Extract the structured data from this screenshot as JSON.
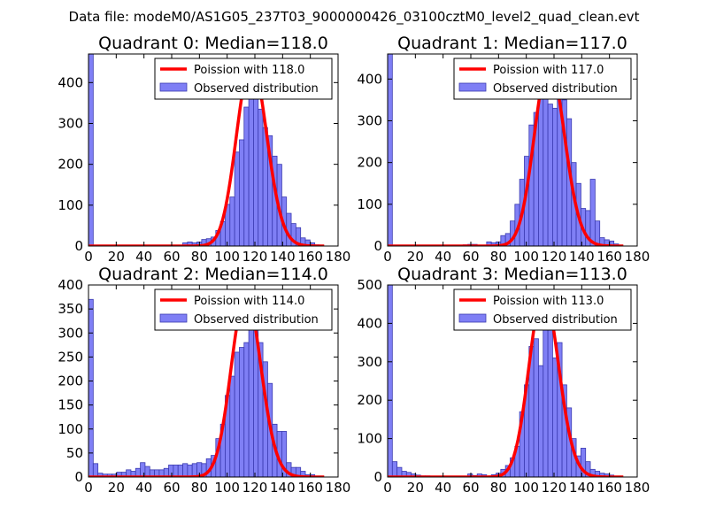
{
  "figure_title": "Data file: modeM0/AS1G05_237T03_9000000426_03100cztM0_level2_quad_clean.evt",
  "colors": {
    "bar_fill": "#7f7ff5",
    "bar_edge": "#3a3ab0",
    "poisson_line": "#ff0000",
    "background": "#ffffff"
  },
  "chart_data": [
    {
      "type": "bar",
      "title": "Quadrant 0: Median=118.0",
      "median": 118.0,
      "xlim": [
        0,
        180
      ],
      "ylim": [
        0,
        470
      ],
      "xticks": [
        "0",
        "20",
        "40",
        "60",
        "80",
        "100",
        "120",
        "140",
        "160",
        "180"
      ],
      "yticks": [
        "0",
        "100",
        "200",
        "300",
        "400"
      ],
      "ytick_values": [
        0,
        100,
        200,
        300,
        400
      ],
      "legend": [
        "Poission with 118.0",
        "Observed distribution"
      ],
      "bin_width": 3.4,
      "bins": [
        [
          0,
          470
        ],
        [
          3.4,
          2
        ],
        [
          6.8,
          1
        ],
        [
          64.6,
          2
        ],
        [
          68,
          8
        ],
        [
          71.4,
          10
        ],
        [
          74.8,
          8
        ],
        [
          78.2,
          10
        ],
        [
          81.6,
          16
        ],
        [
          85,
          18
        ],
        [
          88.4,
          22
        ],
        [
          91.8,
          38
        ],
        [
          95.2,
          60
        ],
        [
          98.6,
          102
        ],
        [
          102,
          120
        ],
        [
          105.4,
          230
        ],
        [
          108.8,
          260
        ],
        [
          112.2,
          340
        ],
        [
          115.6,
          360
        ],
        [
          119,
          400
        ],
        [
          122.4,
          335
        ],
        [
          125.8,
          290
        ],
        [
          129.2,
          270
        ],
        [
          132.6,
          220
        ],
        [
          136,
          200
        ],
        [
          139.4,
          120
        ],
        [
          142.8,
          80
        ],
        [
          146.2,
          55
        ],
        [
          149.6,
          45
        ],
        [
          153,
          20
        ],
        [
          156.4,
          15
        ],
        [
          159.8,
          8
        ],
        [
          163.2,
          3
        ]
      ],
      "poisson": {
        "mean": 118.0,
        "peak": 450
      }
    },
    {
      "type": "bar",
      "title": "Quadrant 1: Median=117.0",
      "median": 117.0,
      "xlim": [
        0,
        180
      ],
      "ylim": [
        0,
        460
      ],
      "xticks": [
        "0",
        "20",
        "40",
        "60",
        "80",
        "100",
        "120",
        "140",
        "160",
        "180"
      ],
      "yticks": [
        "0",
        "100",
        "200",
        "300",
        "400"
      ],
      "ytick_values": [
        0,
        100,
        200,
        300,
        400
      ],
      "legend": [
        "Poission with 117.0",
        "Observed distribution"
      ],
      "bin_width": 3.4,
      "bins": [
        [
          0,
          460
        ],
        [
          3.4,
          2
        ],
        [
          6.8,
          1
        ],
        [
          54.4,
          3
        ],
        [
          57.8,
          4
        ],
        [
          61.2,
          4
        ],
        [
          71.4,
          10
        ],
        [
          74.8,
          8
        ],
        [
          78.2,
          10
        ],
        [
          81.6,
          25
        ],
        [
          85,
          30
        ],
        [
          88.4,
          60
        ],
        [
          91.8,
          100
        ],
        [
          95.2,
          160
        ],
        [
          98.6,
          215
        ],
        [
          102,
          290
        ],
        [
          105.4,
          320
        ],
        [
          108.8,
          355
        ],
        [
          112.2,
          415
        ],
        [
          115.6,
          340
        ],
        [
          119,
          330
        ],
        [
          122.4,
          380
        ],
        [
          125.8,
          350
        ],
        [
          129.2,
          305
        ],
        [
          132.6,
          200
        ],
        [
          136,
          150
        ],
        [
          139.4,
          90
        ],
        [
          142.8,
          85
        ],
        [
          146.2,
          160
        ],
        [
          149.6,
          60
        ],
        [
          153,
          20
        ],
        [
          156.4,
          15
        ],
        [
          159.8,
          12
        ],
        [
          163.2,
          5
        ]
      ],
      "poisson": {
        "mean": 117.0,
        "peak": 440
      }
    },
    {
      "type": "bar",
      "title": "Quadrant 2: Median=114.0",
      "median": 114.0,
      "xlim": [
        0,
        180
      ],
      "ylim": [
        0,
        400
      ],
      "xticks": [
        "0",
        "20",
        "40",
        "60",
        "80",
        "100",
        "120",
        "140",
        "160",
        "180"
      ],
      "yticks": [
        "0",
        "50",
        "100",
        "150",
        "200",
        "250",
        "300",
        "350",
        "400"
      ],
      "ytick_values": [
        0,
        50,
        100,
        150,
        200,
        250,
        300,
        350,
        400
      ],
      "legend": [
        "Poission with 114.0",
        "Observed distribution"
      ],
      "bin_width": 3.4,
      "bins": [
        [
          0,
          370
        ],
        [
          3.4,
          28
        ],
        [
          6.8,
          8
        ],
        [
          10.2,
          6
        ],
        [
          13.6,
          6
        ],
        [
          17,
          6
        ],
        [
          20.4,
          10
        ],
        [
          23.8,
          10
        ],
        [
          27.2,
          15
        ],
        [
          30.6,
          12
        ],
        [
          34,
          18
        ],
        [
          37.4,
          30
        ],
        [
          40.8,
          22
        ],
        [
          44.2,
          15
        ],
        [
          47.6,
          15
        ],
        [
          51,
          15
        ],
        [
          54.4,
          18
        ],
        [
          57.8,
          25
        ],
        [
          61.2,
          25
        ],
        [
          64.6,
          25
        ],
        [
          68,
          28
        ],
        [
          71.4,
          25
        ],
        [
          74.8,
          28
        ],
        [
          78.2,
          30
        ],
        [
          81.6,
          28
        ],
        [
          85,
          38
        ],
        [
          88.4,
          45
        ],
        [
          91.8,
          80
        ],
        [
          95.2,
          110
        ],
        [
          98.6,
          170
        ],
        [
          102,
          210
        ],
        [
          105.4,
          260
        ],
        [
          108.8,
          270
        ],
        [
          112.2,
          280
        ],
        [
          115.6,
          385
        ],
        [
          119,
          335
        ],
        [
          122.4,
          280
        ],
        [
          125.8,
          240
        ],
        [
          129.2,
          195
        ],
        [
          132.6,
          110
        ],
        [
          136,
          95
        ],
        [
          139.4,
          95
        ],
        [
          142.8,
          30
        ],
        [
          146.2,
          20
        ],
        [
          149.6,
          20
        ],
        [
          153,
          12
        ],
        [
          156.4,
          5
        ],
        [
          159.8,
          5
        ],
        [
          163.2,
          2
        ]
      ],
      "poisson": {
        "mean": 114.0,
        "peak": 380
      }
    },
    {
      "type": "bar",
      "title": "Quadrant 3: Median=113.0",
      "median": 113.0,
      "xlim": [
        0,
        180
      ],
      "ylim": [
        0,
        500
      ],
      "xticks": [
        "0",
        "20",
        "40",
        "60",
        "80",
        "100",
        "120",
        "140",
        "160",
        "180"
      ],
      "yticks": [
        "0",
        "100",
        "200",
        "300",
        "400",
        "500"
      ],
      "ytick_values": [
        0,
        100,
        200,
        300,
        400,
        500
      ],
      "legend": [
        "Poission with 113.0",
        "Observed distribution"
      ],
      "bin_width": 3.4,
      "bins": [
        [
          0,
          500
        ],
        [
          3.4,
          40
        ],
        [
          6.8,
          25
        ],
        [
          10.2,
          15
        ],
        [
          13.6,
          12
        ],
        [
          17,
          8
        ],
        [
          20.4,
          5
        ],
        [
          23.8,
          3
        ],
        [
          27.2,
          3
        ],
        [
          57.8,
          8
        ],
        [
          61.2,
          4
        ],
        [
          64.6,
          8
        ],
        [
          68,
          6
        ],
        [
          74.8,
          6
        ],
        [
          78.2,
          10
        ],
        [
          81.6,
          20
        ],
        [
          85,
          30
        ],
        [
          88.4,
          50
        ],
        [
          91.8,
          80
        ],
        [
          95.2,
          170
        ],
        [
          98.6,
          240
        ],
        [
          102,
          340
        ],
        [
          105.4,
          360
        ],
        [
          108.8,
          290
        ],
        [
          112.2,
          480
        ],
        [
          115.6,
          400
        ],
        [
          119,
          310
        ],
        [
          122.4,
          350
        ],
        [
          125.8,
          240
        ],
        [
          129.2,
          180
        ],
        [
          132.6,
          100
        ],
        [
          136,
          55
        ],
        [
          139.4,
          75
        ],
        [
          142.8,
          40
        ],
        [
          146.2,
          20
        ],
        [
          149.6,
          15
        ],
        [
          153,
          10
        ],
        [
          156.4,
          8
        ],
        [
          159.8,
          5
        ]
      ],
      "poisson": {
        "mean": 113.0,
        "peak": 480
      }
    }
  ]
}
